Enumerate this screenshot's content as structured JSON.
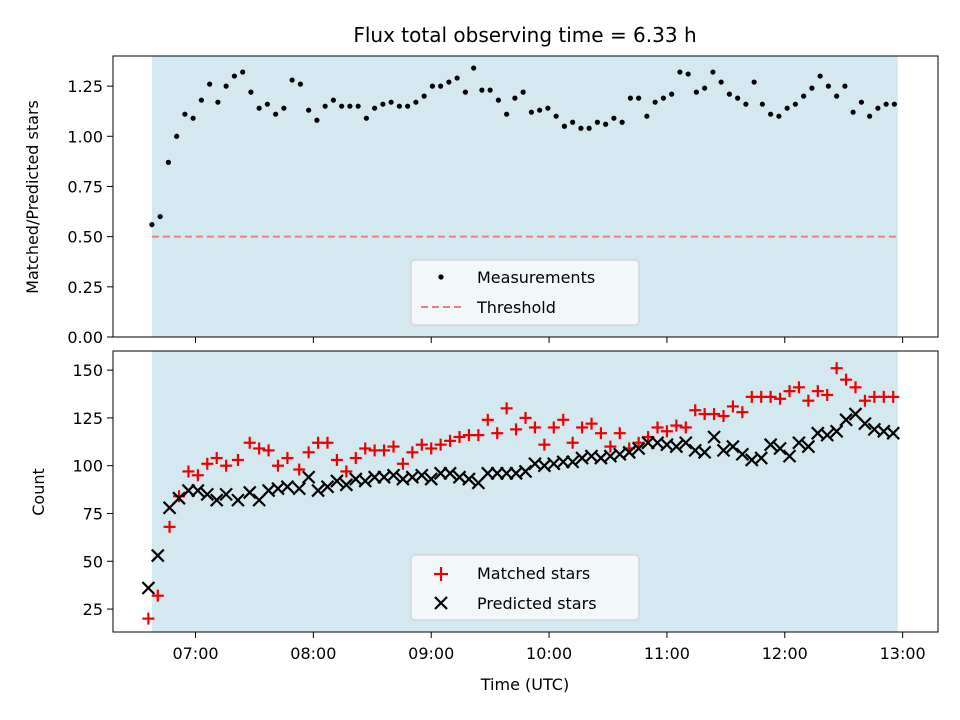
{
  "chart_data": [
    {
      "type": "scatter",
      "title": "Flux total observing time = 6.33 h",
      "ylabel": "Matched/Predicted stars",
      "xlabel": "",
      "x_unit": "hours_utc",
      "xlim": [
        6.3,
        13.3
      ],
      "ylim": [
        0,
        1.4
      ],
      "yticks": [
        "0.00",
        "0.25",
        "0.50",
        "0.75",
        "1.00",
        "1.25"
      ],
      "ytick_values": [
        0,
        0.25,
        0.5,
        0.75,
        1.0,
        1.25
      ],
      "xticks_values": [
        7,
        8,
        9,
        10,
        11,
        12,
        13
      ],
      "shaded_span": [
        6.63,
        12.96
      ],
      "shade_color": "#d3e9ef",
      "legend_position": "lower center",
      "series": [
        {
          "name": "Measurements",
          "kind": "scatter-dot",
          "color": "#000000",
          "x": [
            6.63,
            6.7,
            6.77,
            6.84,
            6.91,
            6.98,
            7.05,
            7.12,
            7.19,
            7.26,
            7.33,
            7.4,
            7.47,
            7.54,
            7.61,
            7.68,
            7.75,
            7.82,
            7.89,
            7.96,
            8.03,
            8.1,
            8.17,
            8.24,
            8.31,
            8.38,
            8.45,
            8.52,
            8.59,
            8.66,
            8.73,
            8.8,
            8.87,
            8.94,
            9.01,
            9.08,
            9.15,
            9.22,
            9.29,
            9.36,
            9.43,
            9.5,
            9.57,
            9.64,
            9.71,
            9.78,
            9.85,
            9.92,
            9.99,
            10.06,
            10.13,
            10.2,
            10.27,
            10.34,
            10.41,
            10.48,
            10.55,
            10.62,
            10.69,
            10.76,
            10.83,
            10.9,
            10.97,
            11.04,
            11.11,
            11.18,
            11.25,
            11.32,
            11.39,
            11.46,
            11.53,
            11.6,
            11.67,
            11.74,
            11.81,
            11.88,
            11.95,
            12.02,
            12.09,
            12.16,
            12.23,
            12.3,
            12.37,
            12.44,
            12.51,
            12.58,
            12.65,
            12.72,
            12.79,
            12.86,
            12.93
          ],
          "y": [
            0.56,
            0.6,
            0.87,
            1.0,
            1.11,
            1.09,
            1.18,
            1.26,
            1.17,
            1.25,
            1.3,
            1.32,
            1.22,
            1.14,
            1.16,
            1.11,
            1.14,
            1.28,
            1.26,
            1.13,
            1.08,
            1.15,
            1.18,
            1.15,
            1.15,
            1.15,
            1.09,
            1.14,
            1.16,
            1.17,
            1.15,
            1.15,
            1.17,
            1.2,
            1.25,
            1.25,
            1.27,
            1.29,
            1.22,
            1.34,
            1.23,
            1.23,
            1.18,
            1.11,
            1.19,
            1.22,
            1.12,
            1.13,
            1.14,
            1.1,
            1.05,
            1.07,
            1.04,
            1.04,
            1.07,
            1.06,
            1.09,
            1.07,
            1.19,
            1.19,
            1.1,
            1.17,
            1.19,
            1.21,
            1.32,
            1.31,
            1.22,
            1.24,
            1.32,
            1.27,
            1.21,
            1.19,
            1.16,
            1.27,
            1.16,
            1.11,
            1.1,
            1.14,
            1.16,
            1.2,
            1.24,
            1.3,
            1.25,
            1.2,
            1.25,
            1.12,
            1.17,
            1.1,
            1.14,
            1.16,
            1.16
          ]
        },
        {
          "name": "Threshold",
          "kind": "hline-dashed",
          "color": "#ee7f7f",
          "y": 0.5
        }
      ]
    },
    {
      "type": "scatter",
      "title": "",
      "ylabel": "Count",
      "xlabel": "Time (UTC)",
      "x_unit": "hours_utc",
      "xlim": [
        6.3,
        13.3
      ],
      "ylim": [
        13,
        160
      ],
      "yticks": [
        "25",
        "50",
        "75",
        "100",
        "125",
        "150"
      ],
      "ytick_values": [
        25,
        50,
        75,
        100,
        125,
        150
      ],
      "xticks": [
        "07:00",
        "08:00",
        "09:00",
        "10:00",
        "11:00",
        "12:00",
        "13:00"
      ],
      "xticks_values": [
        7,
        8,
        9,
        10,
        11,
        12,
        13
      ],
      "shaded_span": [
        6.63,
        12.96
      ],
      "shade_color": "#d3e9ef",
      "legend_position": "lower center",
      "series": [
        {
          "name": "Matched stars",
          "kind": "plus",
          "color": "#ee0000",
          "x": [
            6.6,
            6.68,
            6.78,
            6.86,
            6.94,
            7.02,
            7.1,
            7.18,
            7.26,
            7.36,
            7.46,
            7.54,
            7.62,
            7.7,
            7.78,
            7.88,
            7.96,
            8.04,
            8.12,
            8.2,
            8.28,
            8.36,
            8.44,
            8.52,
            8.6,
            8.68,
            8.76,
            8.84,
            8.92,
            9.0,
            9.08,
            9.16,
            9.24,
            9.32,
            9.4,
            9.48,
            9.56,
            9.64,
            9.72,
            9.8,
            9.88,
            9.96,
            10.04,
            10.12,
            10.2,
            10.28,
            10.36,
            10.44,
            10.52,
            10.6,
            10.68,
            10.76,
            10.84,
            10.92,
            11.0,
            11.08,
            11.16,
            11.24,
            11.32,
            11.4,
            11.48,
            11.56,
            11.64,
            11.72,
            11.8,
            11.88,
            11.96,
            12.04,
            12.12,
            12.2,
            12.28,
            12.36,
            12.44,
            12.52,
            12.6,
            12.68,
            12.76,
            12.84,
            12.92
          ],
          "y": [
            20,
            32,
            68,
            84,
            97,
            95,
            101,
            104,
            100,
            103,
            112,
            109,
            108,
            100,
            104,
            98,
            107,
            112,
            112,
            103,
            97,
            104,
            109,
            108,
            108,
            110,
            101,
            107,
            111,
            109,
            111,
            113,
            115,
            116,
            116,
            124,
            117,
            130,
            119,
            125,
            120,
            111,
            120,
            124,
            112,
            120,
            122,
            117,
            110,
            117,
            109,
            112,
            115,
            120,
            118,
            121,
            120,
            129,
            127,
            127,
            126,
            131,
            128,
            136,
            136,
            136,
            135,
            139,
            141,
            134,
            139,
            137,
            151,
            145,
            141,
            134,
            136,
            136,
            136
          ]
        },
        {
          "name": "Predicted stars",
          "kind": "cross",
          "color": "#000000",
          "x": [
            6.6,
            6.68,
            6.78,
            6.86,
            6.94,
            7.02,
            7.1,
            7.18,
            7.26,
            7.36,
            7.46,
            7.54,
            7.62,
            7.7,
            7.78,
            7.88,
            7.96,
            8.04,
            8.12,
            8.2,
            8.28,
            8.36,
            8.44,
            8.52,
            8.6,
            8.68,
            8.76,
            8.84,
            8.92,
            9.0,
            9.08,
            9.16,
            9.24,
            9.32,
            9.4,
            9.48,
            9.56,
            9.64,
            9.72,
            9.8,
            9.88,
            9.96,
            10.04,
            10.12,
            10.2,
            10.28,
            10.36,
            10.44,
            10.52,
            10.6,
            10.68,
            10.76,
            10.84,
            10.92,
            11.0,
            11.08,
            11.16,
            11.24,
            11.32,
            11.4,
            11.48,
            11.56,
            11.64,
            11.72,
            11.8,
            11.88,
            11.96,
            12.04,
            12.12,
            12.2,
            12.28,
            12.36,
            12.44,
            12.52,
            12.6,
            12.68,
            12.76,
            12.84,
            12.92
          ],
          "y": [
            36,
            53,
            78,
            83,
            87,
            87,
            85,
            82,
            85,
            82,
            86,
            82,
            87,
            88,
            89,
            88,
            94,
            87,
            89,
            92,
            90,
            93,
            92,
            94,
            94,
            95,
            93,
            94,
            95,
            93,
            96,
            96,
            94,
            93,
            91,
            96,
            96,
            96,
            96,
            97,
            101,
            100,
            101,
            102,
            102,
            104,
            105,
            104,
            105,
            106,
            107,
            109,
            112,
            112,
            111,
            110,
            112,
            108,
            107,
            115,
            108,
            110,
            106,
            103,
            104,
            111,
            109,
            105,
            112,
            110,
            117,
            116,
            118,
            124,
            127,
            122,
            119,
            118,
            117
          ]
        }
      ]
    }
  ]
}
